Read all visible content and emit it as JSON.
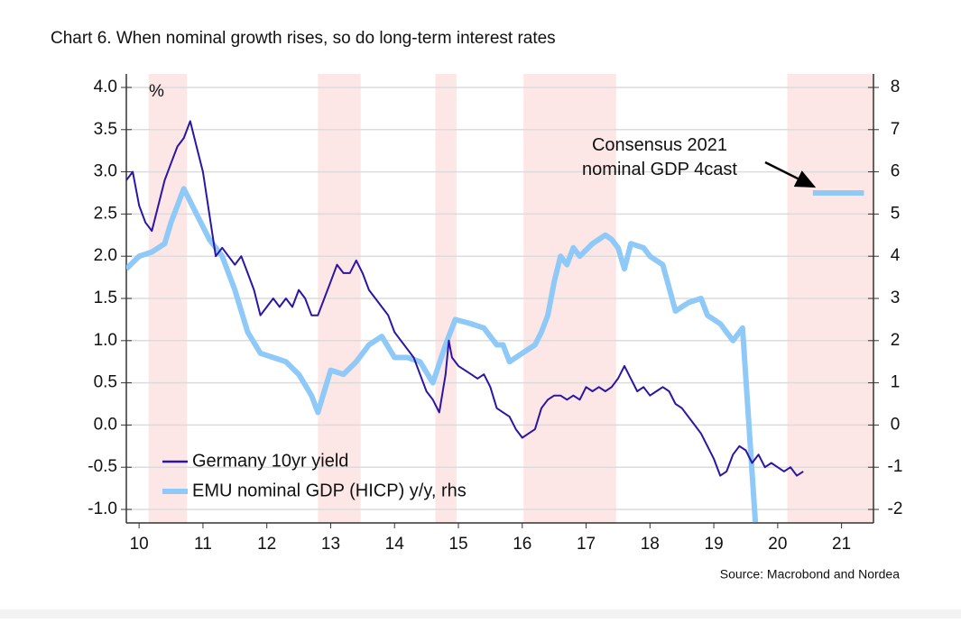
{
  "chart_data": {
    "type": "line",
    "title": "Chart 6. When nominal growth rises, so do long-term interest rates",
    "y_unit_label": "%",
    "source": "Source: Macrobond and Nordea",
    "annotation": "Consensus 2021\nnominal GDP 4cast",
    "xlim": [
      2010.3,
      2022
    ],
    "xticks": [
      {
        "value": 2010.5,
        "label": "10"
      },
      {
        "value": 2011.5,
        "label": "11"
      },
      {
        "value": 2012.5,
        "label": "12"
      },
      {
        "value": 2013.5,
        "label": "13"
      },
      {
        "value": 2014.5,
        "label": "14"
      },
      {
        "value": 2015.5,
        "label": "15"
      },
      {
        "value": 2016.5,
        "label": "16"
      },
      {
        "value": 2017.5,
        "label": "17"
      },
      {
        "value": 2018.5,
        "label": "18"
      },
      {
        "value": 2019.5,
        "label": "19"
      },
      {
        "value": 2020.5,
        "label": "20"
      },
      {
        "value": 2021.5,
        "label": "21"
      }
    ],
    "ylim": [
      -1.16,
      4.16
    ],
    "yticks": [
      {
        "value": 4,
        "label": "4.0"
      },
      3.5,
      {
        "value": 3,
        "label": "3.0"
      },
      2.5,
      {
        "value": 2,
        "label": "2.0"
      },
      1.5,
      {
        "value": 1,
        "label": "1.0"
      },
      0.5,
      {
        "value": 0,
        "label": "0.0"
      },
      -0.5,
      {
        "value": -1,
        "label": "-1.0"
      }
    ],
    "y2lim": [
      -2.32,
      8.32
    ],
    "y2ticks": [
      8,
      7,
      6,
      5,
      4,
      3,
      2,
      1,
      0,
      -1,
      -2
    ],
    "grid": true,
    "legend": "lower left",
    "shade_color": "#fde6e6",
    "shaded_ranges": [
      [
        2010.65,
        2011.25
      ],
      [
        2013.3,
        2013.97
      ],
      [
        2015.14,
        2015.47
      ],
      [
        2016.52,
        2017.97
      ],
      [
        2020.65,
        2022
      ]
    ],
    "series": [
      {
        "name": "Germany 10yr yield",
        "color": "#2a16a4",
        "axis": "y",
        "x": [
          2010.3,
          2010.4,
          2010.5,
          2010.6,
          2010.7,
          2010.8,
          2010.9,
          2011.0,
          2011.1,
          2011.2,
          2011.3,
          2011.4,
          2011.5,
          2011.6,
          2011.7,
          2011.8,
          2011.9,
          2012.0,
          2012.1,
          2012.2,
          2012.3,
          2012.4,
          2012.5,
          2012.6,
          2012.7,
          2012.8,
          2012.9,
          2013.0,
          2013.1,
          2013.2,
          2013.3,
          2013.4,
          2013.5,
          2013.6,
          2013.7,
          2013.8,
          2013.9,
          2014.0,
          2014.1,
          2014.2,
          2014.3,
          2014.4,
          2014.5,
          2014.6,
          2014.7,
          2014.8,
          2014.9,
          2015.0,
          2015.1,
          2015.2,
          2015.3,
          2015.35,
          2015.4,
          2015.5,
          2015.6,
          2015.7,
          2015.8,
          2015.9,
          2016.0,
          2016.1,
          2016.2,
          2016.3,
          2016.4,
          2016.5,
          2016.6,
          2016.7,
          2016.8,
          2016.9,
          2017.0,
          2017.1,
          2017.2,
          2017.3,
          2017.4,
          2017.5,
          2017.6,
          2017.7,
          2017.8,
          2017.9,
          2018.0,
          2018.1,
          2018.2,
          2018.3,
          2018.4,
          2018.5,
          2018.6,
          2018.7,
          2018.8,
          2018.9,
          2019.0,
          2019.1,
          2019.2,
          2019.3,
          2019.4,
          2019.5,
          2019.6,
          2019.7,
          2019.8,
          2019.9,
          2020.0,
          2020.1,
          2020.2,
          2020.3,
          2020.4,
          2020.5,
          2020.6,
          2020.7,
          2020.8,
          2020.9
        ],
        "values": [
          2.9,
          3.0,
          2.6,
          2.4,
          2.3,
          2.6,
          2.9,
          3.1,
          3.3,
          3.4,
          3.6,
          3.3,
          3.0,
          2.5,
          2.0,
          2.1,
          2.0,
          1.9,
          2.0,
          1.8,
          1.6,
          1.3,
          1.4,
          1.5,
          1.4,
          1.5,
          1.4,
          1.6,
          1.5,
          1.3,
          1.3,
          1.5,
          1.7,
          1.9,
          1.8,
          1.8,
          1.95,
          1.8,
          1.6,
          1.5,
          1.4,
          1.3,
          1.1,
          1.0,
          0.9,
          0.8,
          0.6,
          0.4,
          0.3,
          0.15,
          0.6,
          1.0,
          0.8,
          0.7,
          0.65,
          0.6,
          0.55,
          0.6,
          0.45,
          0.2,
          0.15,
          0.1,
          -0.05,
          -0.15,
          -0.1,
          -0.05,
          0.2,
          0.3,
          0.35,
          0.35,
          0.3,
          0.35,
          0.3,
          0.45,
          0.4,
          0.45,
          0.4,
          0.45,
          0.55,
          0.7,
          0.55,
          0.4,
          0.45,
          0.35,
          0.4,
          0.45,
          0.4,
          0.25,
          0.2,
          0.1,
          0.0,
          -0.1,
          -0.25,
          -0.4,
          -0.6,
          -0.55,
          -0.35,
          -0.25,
          -0.3,
          -0.45,
          -0.35,
          -0.5,
          -0.45,
          -0.5,
          -0.55,
          -0.5,
          -0.6,
          -0.55
        ]
      },
      {
        "name": "EMU nominal GDP (HICP) y/y, rhs",
        "color": "#8ec9f7",
        "axis": "y2",
        "x": [
          2010.3,
          2010.5,
          2010.7,
          2010.9,
          2011.0,
          2011.2,
          2011.4,
          2011.6,
          2011.8,
          2012.0,
          2012.2,
          2012.4,
          2012.6,
          2012.8,
          2013.0,
          2013.2,
          2013.3,
          2013.5,
          2013.7,
          2013.9,
          2014.1,
          2014.3,
          2014.5,
          2014.7,
          2014.9,
          2015.1,
          2015.3,
          2015.45,
          2015.7,
          2015.9,
          2016.1,
          2016.2,
          2016.3,
          2016.5,
          2016.7,
          2016.8,
          2016.9,
          2017.0,
          2017.1,
          2017.2,
          2017.3,
          2017.4,
          2017.6,
          2017.8,
          2017.9,
          2018.0,
          2018.1,
          2018.2,
          2018.4,
          2018.5,
          2018.7,
          2018.9,
          2019.1,
          2019.3,
          2019.4,
          2019.6,
          2019.8,
          2019.95,
          2020.05,
          2020.15,
          2020.6,
          2021.05,
          2021.85
        ],
        "values": [
          3.7,
          4.0,
          4.1,
          4.3,
          4.8,
          5.6,
          5.0,
          4.4,
          4.0,
          3.2,
          2.2,
          1.7,
          1.6,
          1.5,
          1.2,
          0.7,
          0.3,
          1.3,
          1.2,
          1.5,
          1.9,
          2.1,
          1.6,
          1.6,
          1.5,
          1.0,
          1.9,
          2.5,
          2.4,
          2.3,
          1.9,
          1.9,
          1.5,
          1.7,
          1.9,
          2.2,
          2.6,
          3.4,
          4.0,
          3.8,
          4.2,
          4.0,
          4.3,
          4.5,
          4.4,
          4.2,
          3.7,
          4.3,
          4.2,
          4.0,
          3.8,
          2.7,
          2.9,
          3.0,
          2.6,
          2.4,
          2.0,
          2.3,
          0.0,
          -2.3,
          null,
          5.5,
          5.5
        ]
      }
    ]
  }
}
